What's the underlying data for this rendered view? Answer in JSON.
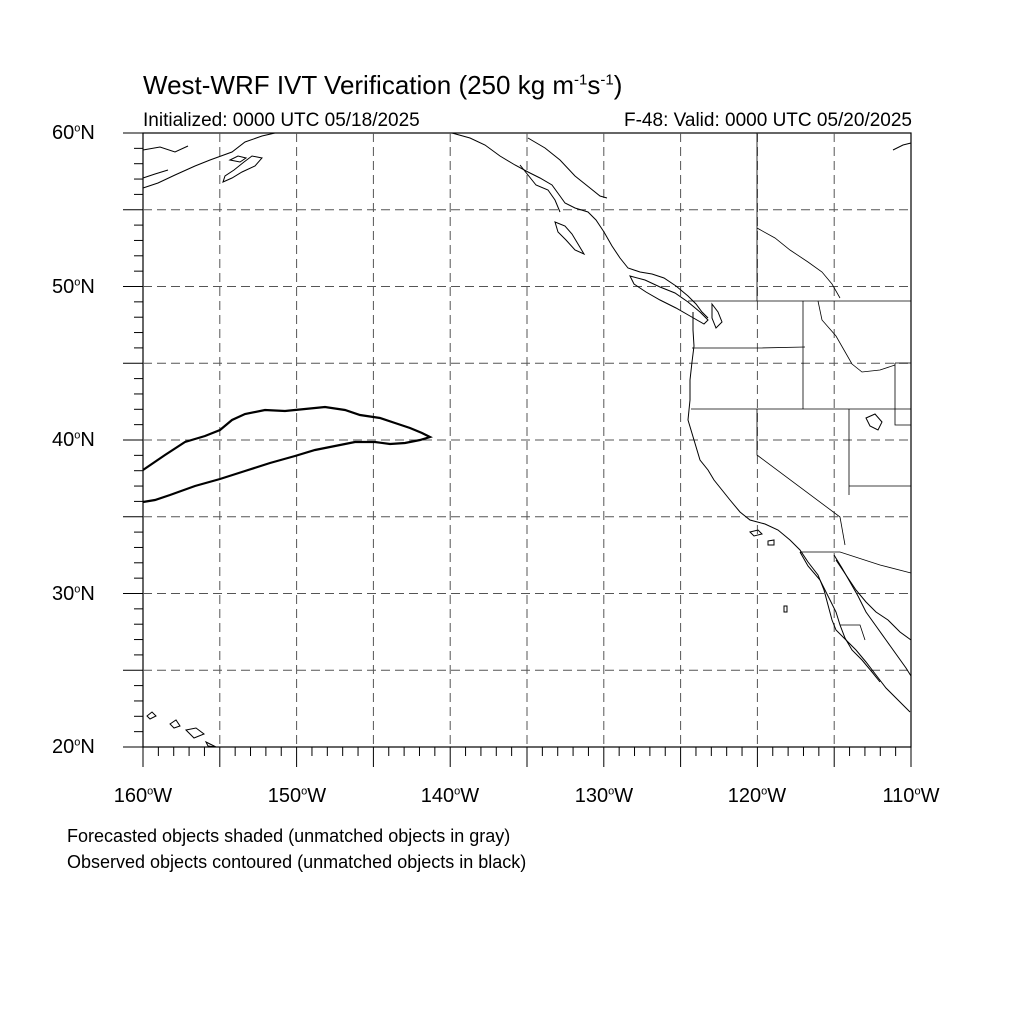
{
  "header": {
    "title_main": "West-WRF IVT Verification (250 kg m",
    "title_exp1": "-1",
    "title_mid": "s",
    "title_exp2": "-1",
    "title_end": ")",
    "initialized": "Initialized: 0000 UTC 05/18/2025",
    "valid": "F-48: Valid: 0000 UTC 05/20/2025"
  },
  "map": {
    "lon_range": [
      -160,
      -110
    ],
    "lat_range": [
      20,
      60
    ],
    "lat_labels": [
      {
        "num": "60",
        "suf": "N"
      },
      {
        "num": "50",
        "suf": "N"
      },
      {
        "num": "40",
        "suf": "N"
      },
      {
        "num": "30",
        "suf": "N"
      },
      {
        "num": "20",
        "suf": "N"
      }
    ],
    "lon_labels": [
      {
        "num": "160",
        "suf": "W"
      },
      {
        "num": "150",
        "suf": "W"
      },
      {
        "num": "140",
        "suf": "W"
      },
      {
        "num": "130",
        "suf": "W"
      },
      {
        "num": "120",
        "suf": "W"
      },
      {
        "num": "110",
        "suf": "W"
      }
    ],
    "gridlines": "dashed every 5 degrees",
    "observed_object_color": "#000000"
  },
  "legend": {
    "line1": "Forecasted objects shaded (unmatched objects in gray)",
    "line2": "Observed objects contoured (unmatched objects in black)"
  }
}
